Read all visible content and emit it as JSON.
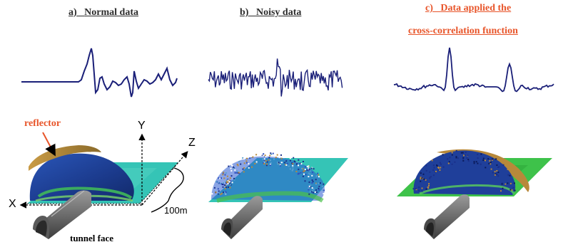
{
  "titles": {
    "a_prefix": "a)",
    "a_text": "Normal data",
    "b_prefix": "b)",
    "b_text": "Noisy data",
    "c_prefix": "c)",
    "c_line1": "Data applied the",
    "c_line2": "cross-correlation function"
  },
  "scene_labels": {
    "reflector": "reflector",
    "y_axis": "Y",
    "z_axis": "Z",
    "x_axis": "X",
    "distance": "100m",
    "tunnel_face": "tunnel face"
  },
  "colors": {
    "waveform": "#1a1f78",
    "title_dark": "#2b2b2b",
    "title_red": "#e8552a",
    "plane": "#35c4b6",
    "dome": "#1f3f9a",
    "reflector": "#b8893a",
    "tunnel": "#6a6a6a",
    "green_plane": "#3ec24a"
  },
  "icons": [
    "arrow-up-icon",
    "arrow-diagonal-icon",
    "arrow-left-icon",
    "tunnel-icon"
  ]
}
